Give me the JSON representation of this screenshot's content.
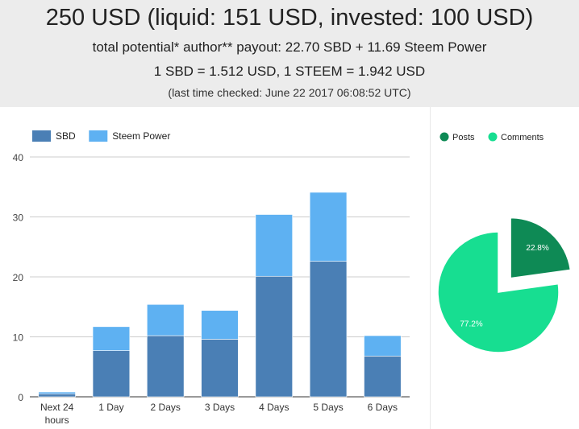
{
  "header": {
    "title": "250 USD (liquid: 151 USD, invested: 100 USD)",
    "payout": "total potential* author** payout: 22.70 SBD + 11.69 Steem Power",
    "rates": "1 SBD = 1.512 USD, 1 STEEM = 1.942 USD",
    "checked": "(last time checked: June 22 2017 06:08:52 UTC)"
  },
  "colors": {
    "sbd": "#4a7fb5",
    "steem_power": "#5eb1f2",
    "posts": "#0e8a55",
    "comments": "#17de91"
  },
  "chart_data": [
    {
      "type": "bar",
      "stacked": true,
      "categories": [
        "Next 24 hours",
        "1 Day",
        "2 Days",
        "3 Days",
        "4 Days",
        "5 Days",
        "6 Days"
      ],
      "series": [
        {
          "name": "SBD",
          "values": [
            0.5,
            7.7,
            10.2,
            9.6,
            20.1,
            22.6,
            6.8
          ]
        },
        {
          "name": "Steem Power",
          "values": [
            0.3,
            4.0,
            5.2,
            4.8,
            10.3,
            11.5,
            3.4
          ]
        }
      ],
      "yticks": [
        "0",
        "10",
        "20",
        "30",
        "40"
      ],
      "ylim": [
        0,
        40
      ],
      "grid": true,
      "legend": "top-left"
    },
    {
      "type": "pie",
      "slices": [
        {
          "name": "Posts",
          "value": 22.8,
          "label": "22.8%"
        },
        {
          "name": "Comments",
          "value": 77.2,
          "label": "77.2%"
        }
      ],
      "exploded": "Posts",
      "legend": "top"
    }
  ]
}
